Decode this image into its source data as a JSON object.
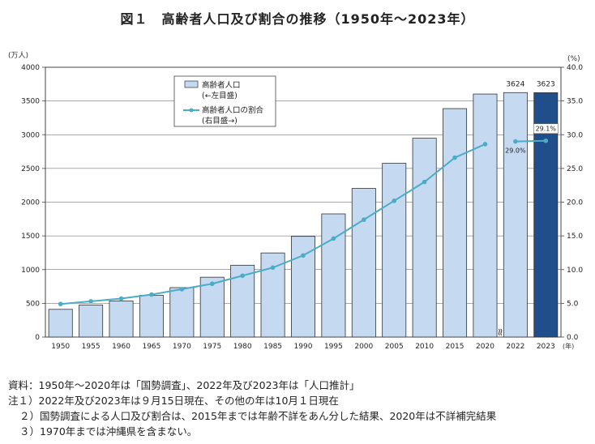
{
  "title": "図１　高齢者人口及び割合の推移（1950年～2023年）",
  "chart_data": {
    "type": "bar",
    "categories": [
      "1950",
      "1955",
      "1960",
      "1965",
      "1970",
      "1975",
      "1980",
      "1985",
      "1990",
      "1995",
      "2000",
      "2005",
      "2010",
      "2015",
      "2020",
      "2022",
      "2023"
    ],
    "series": [
      {
        "name": "高齢者人口",
        "axis": "left",
        "kind": "bar",
        "values": [
          411,
          475,
          535,
          618,
          733,
          887,
          1065,
          1247,
          1493,
          1826,
          2204,
          2576,
          2948,
          3387,
          3603,
          3624,
          3623
        ],
        "colors": {
          "fill": "#c5d9f1",
          "highlight": "#1f4e8a",
          "stroke": "#333333"
        }
      },
      {
        "name": "高齢者人口の割合",
        "axis": "right",
        "kind": "line",
        "values": [
          4.9,
          5.3,
          5.7,
          6.3,
          7.1,
          7.9,
          9.1,
          10.3,
          12.1,
          14.6,
          17.4,
          20.2,
          23.0,
          26.6,
          28.6,
          29.0,
          29.1
        ],
        "break_after_index": 14,
        "color": "#4bacc6"
      }
    ],
    "left_axis": {
      "unit": "(万人)",
      "ylim": [
        0,
        4000
      ],
      "ticks": [
        "0",
        "500",
        "1000",
        "1500",
        "2000",
        "2500",
        "3000",
        "3500",
        "4000"
      ]
    },
    "right_axis": {
      "unit": "(%)",
      "ylim": [
        0,
        40
      ],
      "ticks": [
        "0.0",
        "5.0",
        "10.0",
        "15.0",
        "20.0",
        "25.0",
        "30.0",
        "35.0",
        "40.0"
      ]
    },
    "x_unit": "(年)",
    "data_labels": {
      "bar": [
        {
          "index": 15,
          "text": "3624"
        },
        {
          "index": 16,
          "text": "3623"
        }
      ],
      "line": [
        {
          "index": 15,
          "text": "29.0%"
        },
        {
          "index": 16,
          "text": "29.1%"
        }
      ]
    },
    "legend": {
      "position": "top-left",
      "bar_label_1": "高齢者人口",
      "bar_label_2": "(←左目盛)",
      "line_label_1": "高齢者人口の割合",
      "line_label_2": "(右目盛→)"
    },
    "axis_break_symbol": "≈",
    "grid": true
  },
  "notes": {
    "source": "資料：1950年～2020年は「国勢調査」、2022年及び2023年は「人口推計」",
    "note1": "注１）2022年及び2023年は９月15日現在、その他の年は10月１日現在",
    "note2": "２）国勢調査による人口及び割合は、2015年までは年齢不詳をあん分した結果、2020年は不詳補完結果",
    "note3": "３）1970年までは沖縄県を含まない。"
  }
}
